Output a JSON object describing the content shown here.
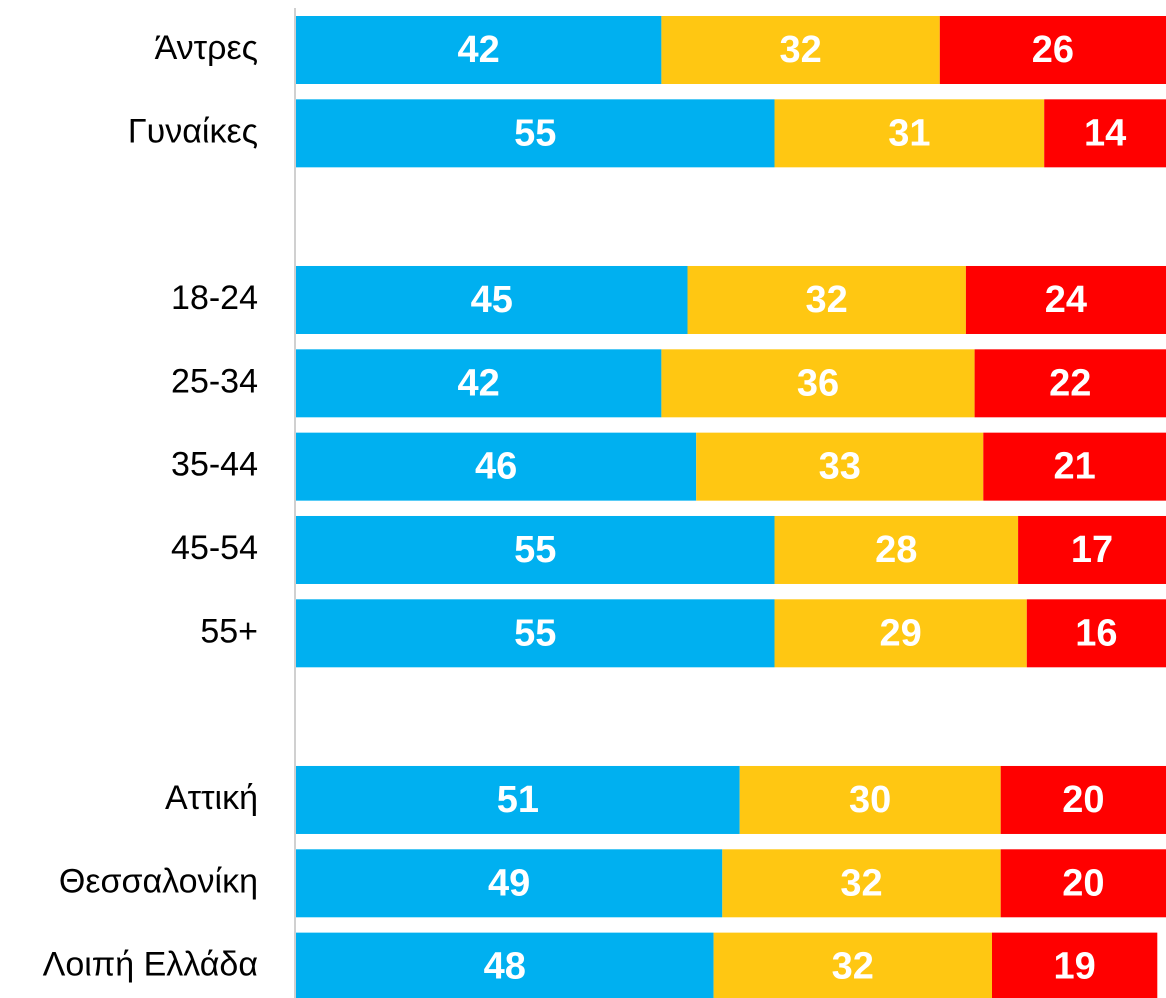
{
  "chart_data": {
    "type": "stacked-bar-horizontal",
    "categories": [
      "Άντρες",
      "Γυναίκες",
      null,
      "18-24",
      "25-34",
      "35-44",
      "45-54",
      "55+",
      null,
      "Αττική",
      "Θεσσαλονίκη",
      "Λοιπή Ελλάδα"
    ],
    "series": [
      {
        "color": "#00b0f0",
        "values": [
          42,
          55,
          null,
          45,
          42,
          46,
          55,
          55,
          null,
          51,
          49,
          48
        ]
      },
      {
        "color": "#ffc712",
        "values": [
          32,
          31,
          null,
          32,
          36,
          33,
          28,
          29,
          null,
          30,
          32,
          32
        ]
      },
      {
        "color": "#ff0000",
        "values": [
          26,
          14,
          null,
          24,
          22,
          21,
          17,
          16,
          null,
          20,
          20,
          19
        ]
      }
    ],
    "xlim": [
      0,
      100
    ]
  }
}
